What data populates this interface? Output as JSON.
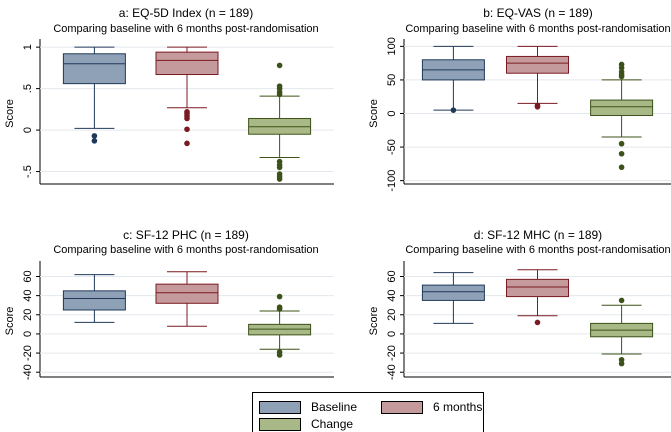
{
  "colors": {
    "baseline": "#8ea1b6",
    "six_months": "#c49a9c",
    "change": "#a8b987",
    "baseline_line": "#20395a",
    "six_months_line": "#7a1a22",
    "change_line": "#3d5219"
  },
  "legend": {
    "items": [
      {
        "key": "baseline",
        "label": "Baseline"
      },
      {
        "key": "six_months",
        "label": "6 months"
      },
      {
        "key": "change",
        "label": "Change"
      }
    ]
  },
  "chart_data": [
    {
      "type": "box",
      "title": "a: EQ-5D Index (n = 189)",
      "subtitle": "Comparing baseline with 6 months post-randomisation",
      "ylabel": "Score",
      "ylim": [
        -0.65,
        1.05
      ],
      "yticks": [
        1,
        0.5,
        0,
        -0.5
      ],
      "yticklabels": [
        "1",
        ".5",
        "0",
        "-.5"
      ],
      "categories": [
        "Baseline",
        "6 months",
        "Change"
      ],
      "boxes": [
        {
          "name": "Baseline",
          "lower_whisker": 0.02,
          "q1": 0.56,
          "median": 0.8,
          "q3": 0.92,
          "upper_whisker": 1.0,
          "outliers": [
            -0.07,
            -0.13
          ]
        },
        {
          "name": "6 months",
          "lower_whisker": 0.27,
          "q1": 0.67,
          "median": 0.84,
          "q3": 0.94,
          "upper_whisker": 1.0,
          "outliers": [
            0.22,
            0.2,
            0.17,
            0.14,
            0.01,
            -0.16
          ]
        },
        {
          "name": "Change",
          "lower_whisker": -0.33,
          "q1": -0.05,
          "median": 0.04,
          "q3": 0.14,
          "upper_whisker": 0.41,
          "outliers": [
            0.78,
            0.53,
            0.5,
            0.46,
            0.43,
            -0.38,
            -0.42,
            -0.45,
            -0.53,
            -0.56,
            -0.59
          ]
        }
      ]
    },
    {
      "type": "box",
      "title": "b: EQ-VAS (n = 189)",
      "subtitle": "Comparing baseline with 6 months post-randomisation",
      "ylabel": "Score",
      "ylim": [
        -105,
        105
      ],
      "yticks": [
        100,
        50,
        0,
        -50,
        -100
      ],
      "yticklabels": [
        "100",
        "50",
        "0",
        "-50",
        "-100"
      ],
      "categories": [
        "Baseline",
        "6 months",
        "Change"
      ],
      "boxes": [
        {
          "name": "Baseline",
          "lower_whisker": 5,
          "q1": 50,
          "median": 65,
          "q3": 80,
          "upper_whisker": 100,
          "outliers": [
            5
          ]
        },
        {
          "name": "6 months",
          "lower_whisker": 15,
          "q1": 60,
          "median": 75,
          "q3": 85,
          "upper_whisker": 100,
          "outliers": [
            12,
            10
          ]
        },
        {
          "name": "Change",
          "lower_whisker": -35,
          "q1": -3,
          "median": 10,
          "q3": 20,
          "upper_whisker": 50,
          "outliers": [
            73,
            68,
            62,
            58,
            55,
            -45,
            -60,
            -80
          ]
        }
      ]
    },
    {
      "type": "box",
      "title": "c: SF-12 PHC (n = 189)",
      "subtitle": "Comparing baseline with 6 months post-randomisation",
      "ylabel": "Score",
      "ylim": [
        -45,
        72
      ],
      "yticks": [
        60,
        40,
        20,
        0,
        -20,
        -40
      ],
      "yticklabels": [
        "60",
        "40",
        "20",
        "0",
        "-20",
        "-40"
      ],
      "categories": [
        "Baseline",
        "6 months",
        "Change"
      ],
      "boxes": [
        {
          "name": "Baseline",
          "lower_whisker": 12,
          "q1": 25,
          "median": 37,
          "q3": 45,
          "upper_whisker": 62,
          "outliers": []
        },
        {
          "name": "6 months",
          "lower_whisker": 8,
          "q1": 32,
          "median": 43,
          "q3": 52,
          "upper_whisker": 65,
          "outliers": []
        },
        {
          "name": "Change",
          "lower_whisker": -16,
          "q1": -1,
          "median": 5,
          "q3": 10,
          "upper_whisker": 24,
          "outliers": [
            39,
            28,
            26,
            -19,
            -22
          ]
        }
      ]
    },
    {
      "type": "box",
      "title": "d: SF-12 MHC (n = 189)",
      "subtitle": "Comparing baseline with 6 months post-randomisation",
      "ylabel": "Score",
      "ylim": [
        -45,
        72
      ],
      "yticks": [
        60,
        40,
        20,
        0,
        -20,
        -40
      ],
      "yticklabels": [
        "60",
        "40",
        "20",
        "0",
        "-20",
        "-40"
      ],
      "categories": [
        "Baseline",
        "6 months",
        "Change"
      ],
      "boxes": [
        {
          "name": "Baseline",
          "lower_whisker": 11,
          "q1": 35,
          "median": 44,
          "q3": 51,
          "upper_whisker": 64,
          "outliers": []
        },
        {
          "name": "6 months",
          "lower_whisker": 19,
          "q1": 39,
          "median": 49,
          "q3": 57,
          "upper_whisker": 67,
          "outliers": [
            12
          ]
        },
        {
          "name": "Change",
          "lower_whisker": -21,
          "q1": -3,
          "median": 4,
          "q3": 11,
          "upper_whisker": 30,
          "outliers": [
            35,
            -27,
            -31
          ]
        }
      ]
    }
  ]
}
